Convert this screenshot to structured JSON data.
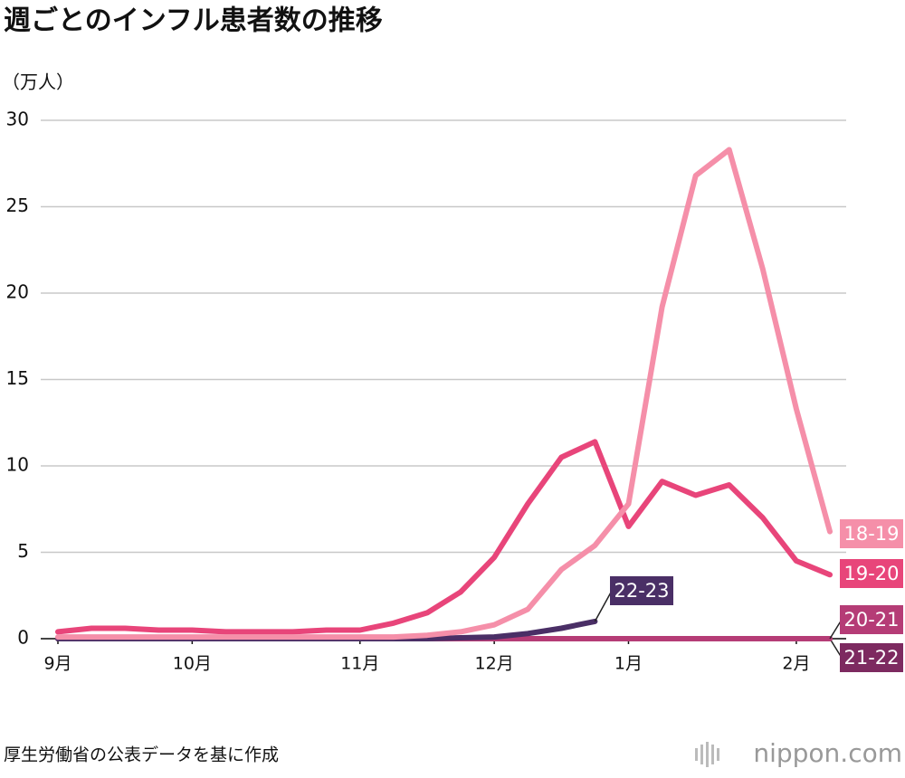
{
  "chart_data": {
    "type": "line",
    "title": "週ごとのインフル患者数の推移",
    "y_label": "（万人）",
    "source": "厚生労働省の公表データを基に作成",
    "logo": "nippon.com",
    "categories": [
      "9月",
      null,
      null,
      null,
      "10月",
      null,
      null,
      null,
      null,
      "11月",
      null,
      null,
      null,
      "12月",
      null,
      null,
      null,
      "1月",
      null,
      null,
      null,
      null,
      "2月",
      null
    ],
    "ylim": [
      0,
      30
    ],
    "yticks": [
      0,
      5,
      10,
      15,
      20,
      25,
      30
    ],
    "grid": true,
    "series": [
      {
        "name": "21-22",
        "color": "#7d2a60",
        "values": [
          0,
          0,
          0,
          0,
          0,
          0,
          0,
          0,
          0,
          0,
          0,
          0,
          0,
          0,
          0,
          0,
          0,
          0,
          0,
          0,
          0,
          0,
          0,
          0
        ]
      },
      {
        "name": "20-21",
        "color": "#b53c76",
        "values": [
          0,
          0,
          0,
          0,
          0,
          0,
          0,
          0,
          0,
          0,
          0,
          0,
          0,
          0,
          0,
          0,
          0,
          0,
          0,
          0,
          0,
          0,
          0,
          0
        ]
      },
      {
        "name": "22-23",
        "color": "#4a2f66",
        "values": [
          0,
          0,
          0,
          0,
          0,
          0,
          0,
          0,
          0,
          0,
          0,
          0,
          0.05,
          0.1,
          0.3,
          0.6,
          1.0,
          null,
          null,
          null,
          null,
          null,
          null,
          null
        ]
      },
      {
        "name": "19-20",
        "color": "#e8457a",
        "values": [
          0.4,
          0.6,
          0.6,
          0.5,
          0.5,
          0.4,
          0.4,
          0.4,
          0.5,
          0.5,
          0.9,
          1.5,
          2.7,
          4.7,
          7.8,
          10.5,
          11.4,
          6.5,
          9.1,
          8.3,
          8.9,
          7.0,
          4.5,
          3.7
        ]
      },
      {
        "name": "18-19",
        "color": "#f58fa9",
        "values": [
          0.1,
          0.1,
          0.1,
          0.1,
          0.1,
          0.1,
          0.1,
          0.1,
          0.1,
          0.1,
          0.1,
          0.2,
          0.4,
          0.8,
          1.7,
          4.0,
          5.4,
          7.8,
          19.2,
          26.8,
          28.3,
          21.4,
          13.3,
          6.2
        ]
      }
    ]
  }
}
